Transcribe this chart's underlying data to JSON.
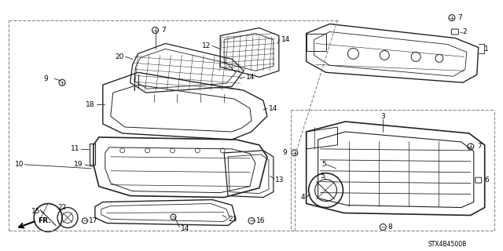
{
  "diagram_code": "STX4B4500B",
  "bg_color": "#ffffff",
  "lc": "#222222",
  "tc": "#000000",
  "figsize": [
    6.4,
    3.2
  ],
  "dpi": 100
}
